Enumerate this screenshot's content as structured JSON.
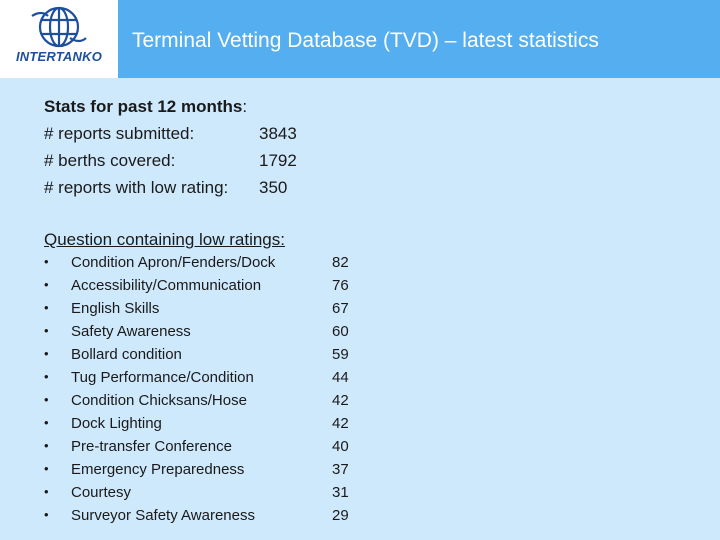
{
  "header": {
    "logo_text": "INTERTANKO",
    "title": "Terminal Vetting Database (TVD) – latest statistics"
  },
  "stats": {
    "heading_bold": "Stats for past 12 months",
    "heading_suffix": ":",
    "rows": [
      {
        "label": "# reports submitted:",
        "value": "3843"
      },
      {
        "label": "# berths covered:",
        "value": "1792"
      },
      {
        "label": "# reports with low rating:",
        "value": "350"
      }
    ]
  },
  "questions": {
    "heading": "Question containing low ratings:",
    "bullet_char": "•",
    "items": [
      {
        "label": "Condition Apron/Fenders/Dock",
        "count": "82"
      },
      {
        "label": "Accessibility/Communication",
        "count": "76"
      },
      {
        "label": "English Skills",
        "count": "67"
      },
      {
        "label": "Safety Awareness",
        "count": "60"
      },
      {
        "label": "Bollard condition",
        "count": "59"
      },
      {
        "label": "Tug Performance/Condition",
        "count": "44"
      },
      {
        "label": "Condition Chicksans/Hose",
        "count": "42"
      },
      {
        "label": "Dock Lighting",
        "count": "42"
      },
      {
        "label": "Pre-transfer Conference",
        "count": "40"
      },
      {
        "label": "Emergency Preparedness",
        "count": "37"
      },
      {
        "label": "Courtesy",
        "count": "31"
      },
      {
        "label": "Surveyor Safety Awareness",
        "count": "29"
      }
    ]
  },
  "colors": {
    "header_bg": "#54aef0",
    "page_bg": "#cfe9fc",
    "logo_blue": "#1d4f9c"
  },
  "icons": {
    "logo": "intertanko-globe-icon"
  }
}
